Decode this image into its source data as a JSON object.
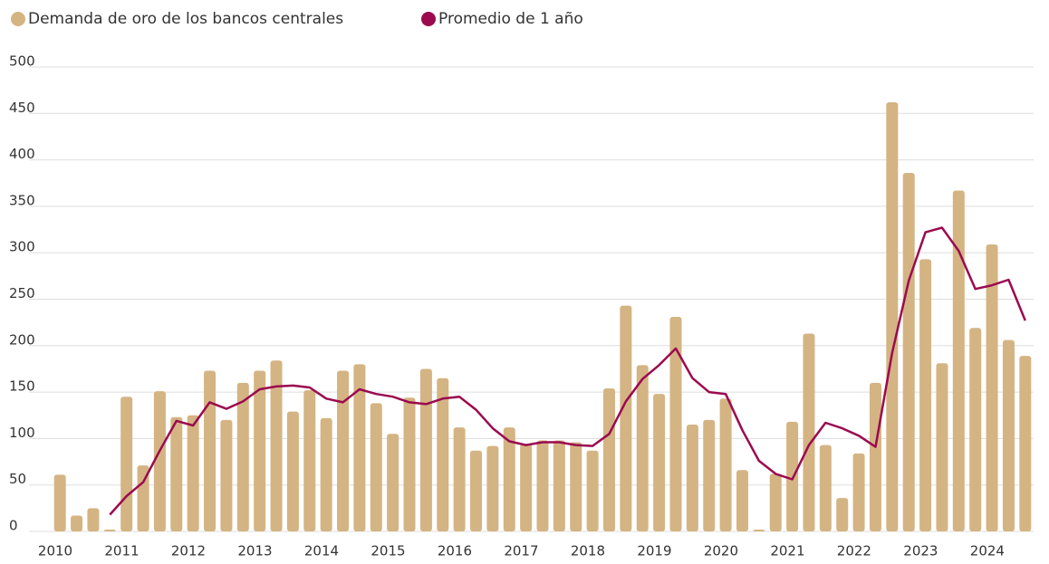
{
  "chart_data": {
    "type": "bar",
    "categories": [
      "2010",
      null,
      null,
      null,
      "2011",
      null,
      null,
      null,
      "2012",
      null,
      null,
      null,
      "2013",
      null,
      null,
      null,
      "2014",
      null,
      null,
      null,
      "2015",
      null,
      null,
      null,
      "2016",
      null,
      null,
      null,
      "2017",
      null,
      null,
      null,
      "2018",
      null,
      null,
      null,
      "2019",
      null,
      null,
      null,
      "2020",
      null,
      null,
      null,
      "2021",
      null,
      null,
      null,
      "2022",
      null,
      null,
      null,
      "2023",
      null,
      null,
      null,
      "2024",
      null,
      null
    ],
    "series": [
      {
        "name": "Demanda de oro de los bancos centrales",
        "color": "#d4b483",
        "type": "bar",
        "values": [
          61,
          17,
          25,
          2,
          145,
          71,
          151,
          123,
          125,
          173,
          120,
          160,
          173,
          184,
          129,
          152,
          122,
          173,
          180,
          138,
          105,
          144,
          175,
          165,
          112,
          87,
          92,
          112,
          94,
          98,
          98,
          96,
          87,
          154,
          243,
          179,
          148,
          231,
          115,
          120,
          143,
          66,
          2,
          62,
          118,
          213,
          93,
          36,
          84,
          160,
          462,
          386,
          293,
          181,
          367,
          219,
          309,
          206,
          189
        ]
      },
      {
        "name": "Promedio de 1 año",
        "color": "#9b0a4f",
        "type": "line",
        "values": [
          null,
          null,
          null,
          18,
          38,
          53,
          87,
          119,
          114,
          139,
          132,
          140,
          153,
          156,
          157,
          155,
          143,
          139,
          153,
          148,
          145,
          139,
          137,
          143,
          145,
          131,
          111,
          97,
          93,
          96,
          96,
          93,
          92,
          105,
          140,
          164,
          179,
          197,
          165,
          150,
          148,
          109,
          76,
          62,
          56,
          93,
          117,
          111,
          103,
          91,
          192,
          270,
          322,
          327,
          302,
          261,
          265,
          271,
          227
        ]
      }
    ],
    "ylim": [
      0,
      500
    ],
    "yticks": [
      0,
      50,
      100,
      150,
      200,
      250,
      300,
      350,
      400,
      450,
      500
    ],
    "grid": true
  }
}
